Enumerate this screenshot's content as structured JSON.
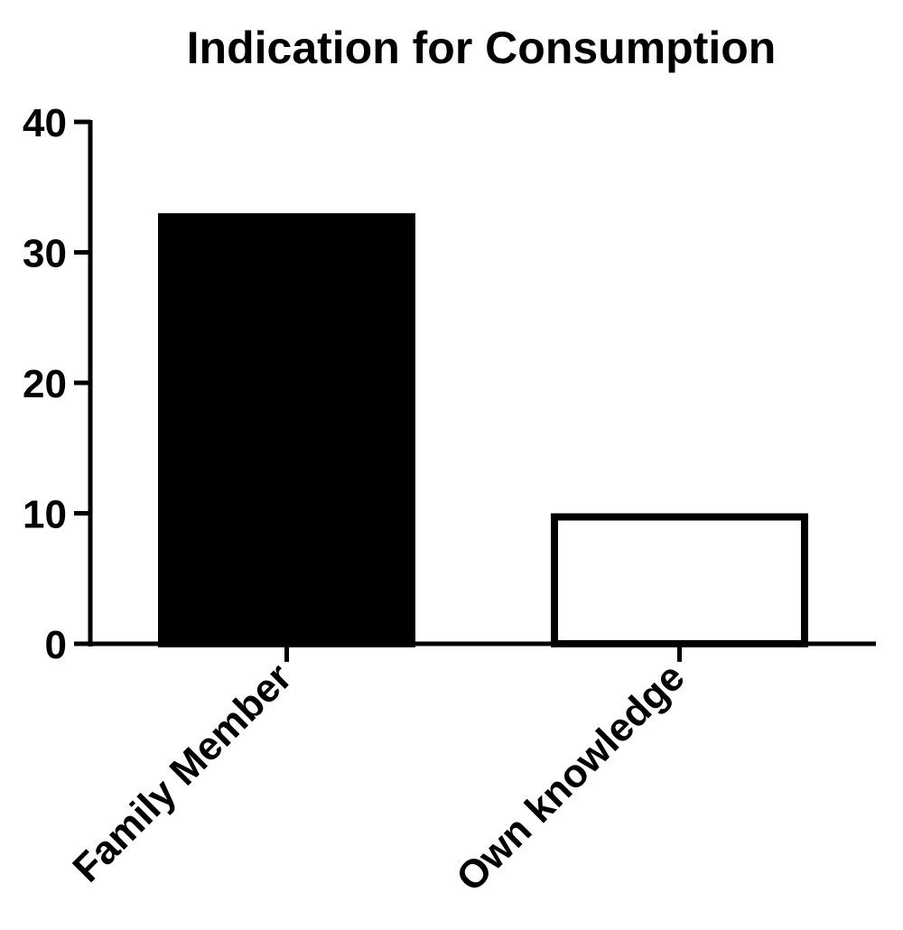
{
  "chart_data": {
    "type": "bar",
    "title": "Indication for Consumption",
    "xlabel": "",
    "ylabel": "",
    "categories": [
      "Family Member",
      "Own knowledge"
    ],
    "values": [
      33,
      10
    ],
    "ylim": [
      0,
      40
    ],
    "yticks": [
      "0",
      "10",
      "20",
      "30",
      "40"
    ],
    "grid": false,
    "colors": {
      "bar_fills": [
        "#000000",
        "#ffffff"
      ],
      "bar_stroke": "#000000",
      "axis": "#000000"
    }
  }
}
